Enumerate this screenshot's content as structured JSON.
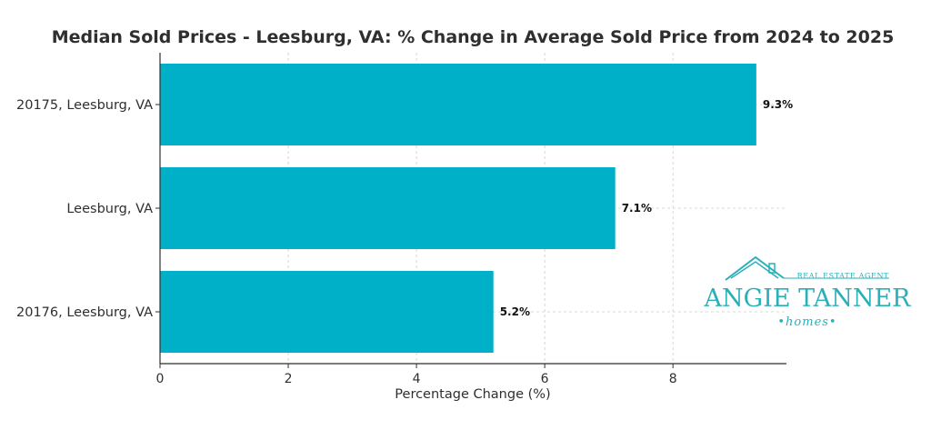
{
  "chart_data": {
    "type": "bar",
    "orientation": "horizontal",
    "title": "Median Sold Prices - Leesburg, VA: % Change in Average Sold Price from 2024 to 2025",
    "xlabel": "Percentage Change (%)",
    "ylabel": "",
    "categories": [
      "20175, Leesburg, VA",
      "Leesburg, VA",
      "20176, Leesburg, VA"
    ],
    "values": [
      9.3,
      7.1,
      5.2
    ],
    "data_labels": [
      "9.3%",
      "7.1%",
      "5.2%"
    ],
    "xlim": [
      0,
      9.77
    ],
    "xticks": [
      0,
      2,
      4,
      6,
      8
    ],
    "grid": true,
    "bar_color": "#00b0c8"
  },
  "logo": {
    "tagline": "REAL ESTATE AGENT",
    "name": "ANGIE TANNER",
    "sub": "•homes•",
    "color": "#2ab0b8"
  }
}
